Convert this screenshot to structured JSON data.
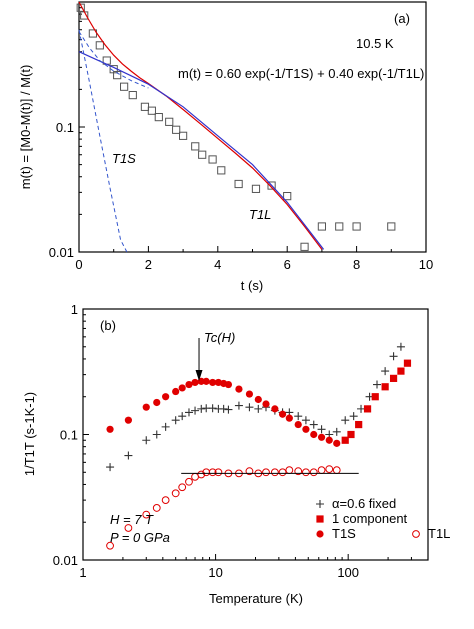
{
  "chart_data": [
    {
      "type": "scatter",
      "panel_label": "(a)",
      "annotations": {
        "temperature": "10.5 K",
        "formula": "m(t) = 0.60 exp(-1/T1S) + 0.40 exp(-1/T1L)",
        "t1s_label": "T1S",
        "t1l_label": "T1L"
      },
      "xlabel": "t (s)",
      "ylabel": "m(t) = [M0-M(t)] / M(t)",
      "xlim": [
        0,
        10
      ],
      "ylim": [
        0.01,
        1
      ],
      "yscale": "log",
      "x_ticks": [
        "0",
        "2",
        "4",
        "6",
        "8",
        "10"
      ],
      "y_ticks": [
        "0.01",
        "0.1"
      ],
      "series": [
        {
          "marker": "open-square",
          "color": "#555555",
          "x": [
            0.05,
            0.15,
            0.4,
            0.6,
            0.8,
            1.0,
            1.1,
            1.3,
            1.55,
            1.9,
            2.1,
            2.3,
            2.6,
            2.8,
            3.0,
            3.35,
            3.55,
            3.85,
            4.1,
            4.6,
            5.1,
            5.55,
            6.0,
            6.5,
            7.0,
            7.5,
            8.0,
            9.0
          ],
          "y": [
            0.9,
            0.78,
            0.56,
            0.45,
            0.34,
            0.29,
            0.26,
            0.21,
            0.18,
            0.145,
            0.135,
            0.12,
            0.11,
            0.095,
            0.085,
            0.07,
            0.06,
            0.055,
            0.045,
            0.035,
            0.032,
            0.034,
            0.028,
            0.011,
            0.016,
            0.016,
            0.016,
            0.016
          ]
        },
        {
          "style": "line",
          "color": "#dd0000",
          "x": [
            0,
            0.25,
            0.5,
            0.75,
            1.0,
            1.25,
            1.5,
            1.75,
            2,
            2.5,
            3,
            3.5,
            4,
            4.5,
            5,
            5.5,
            6,
            6.5,
            7.0
          ],
          "y": [
            1.0,
            0.745,
            0.57,
            0.455,
            0.375,
            0.32,
            0.28,
            0.248,
            0.223,
            0.178,
            0.138,
            0.106,
            0.081,
            0.062,
            0.047,
            0.034,
            0.024,
            0.016,
            0.0105
          ]
        },
        {
          "style": "line",
          "color": "#3333cc",
          "x": [
            0,
            1,
            2,
            3,
            4,
            5,
            6,
            7.05
          ],
          "y": [
            0.4,
            0.3,
            0.22,
            0.145,
            0.085,
            0.05,
            0.025,
            0.0105
          ]
        },
        {
          "style": "dashed",
          "color": "#3355cc",
          "x": [
            0,
            0.3,
            0.6,
            0.9,
            1.2,
            1.38
          ],
          "y": [
            0.6,
            0.23,
            0.085,
            0.032,
            0.0125,
            0.01
          ]
        },
        {
          "style": "dashed",
          "color": "#3355cc",
          "x": [
            0,
            0.3,
            0.6,
            1.0,
            1.5,
            2.0
          ],
          "y": [
            0.58,
            0.43,
            0.34,
            0.28,
            0.235,
            0.205
          ]
        }
      ]
    },
    {
      "type": "scatter",
      "panel_label": "(b)",
      "xlabel": "Temperature (K)",
      "ylabel": "1/T1T (s-1K-1)",
      "xscale": "log",
      "yscale": "log",
      "xlim": [
        1,
        400
      ],
      "ylim": [
        0.01,
        1
      ],
      "x_ticks": [
        "1",
        "10",
        "100"
      ],
      "y_ticks": [
        "0.01",
        "0.1",
        "1"
      ],
      "annotations": {
        "tc_label": "Tc(H)",
        "tc_x": 7.5,
        "field": "H =  7 T",
        "pressure": "P = 0 GPa"
      },
      "legend": {
        "position": "bottom-right",
        "entries": [
          {
            "marker": "plus",
            "color": "#333333",
            "label": "α=0.6 fixed"
          },
          {
            "marker": "filled-square",
            "color": "#e00000",
            "label": "1 component"
          },
          {
            "marker": "filled-circle",
            "color": "#e00000",
            "label": "T1S"
          },
          {
            "marker": "open-circle",
            "color": "#e00000",
            "label": "T1L"
          }
        ]
      },
      "series": [
        {
          "name": "α=0.6 fixed",
          "marker": "plus",
          "color": "#333333",
          "x": [
            1.6,
            2.2,
            3.0,
            3.6,
            4.2,
            5.0,
            5.6,
            6.3,
            7.0,
            7.8,
            8.5,
            9.5,
            10.5,
            11.5,
            12.5,
            15,
            18,
            21,
            24,
            28,
            32,
            36,
            42,
            48,
            55,
            63,
            72,
            82,
            95,
            110,
            125,
            145,
            165,
            190,
            220,
            250
          ],
          "y": [
            0.055,
            0.068,
            0.09,
            0.1,
            0.115,
            0.13,
            0.14,
            0.15,
            0.155,
            0.16,
            0.162,
            0.162,
            0.16,
            0.16,
            0.158,
            0.17,
            0.165,
            0.16,
            0.165,
            0.155,
            0.15,
            0.15,
            0.14,
            0.13,
            0.12,
            0.11,
            0.1,
            0.105,
            0.13,
            0.14,
            0.16,
            0.2,
            0.25,
            0.32,
            0.42,
            0.5
          ]
        },
        {
          "name": "1 component",
          "marker": "filled-square",
          "color": "#e00000",
          "x": [
            95,
            105,
            120,
            140,
            160,
            190,
            220,
            250,
            280
          ],
          "y": [
            0.09,
            0.1,
            0.12,
            0.16,
            0.2,
            0.24,
            0.28,
            0.32,
            0.37
          ]
        },
        {
          "name": "T1S",
          "marker": "filled-circle",
          "color": "#e00000",
          "x": [
            1.6,
            2.2,
            3.0,
            3.6,
            4.2,
            5.0,
            5.6,
            6.3,
            7.0,
            7.8,
            8.5,
            9.5,
            10.5,
            11.5,
            12.5,
            15,
            18,
            21,
            24,
            28,
            32,
            36,
            42,
            48,
            55,
            63,
            72,
            82
          ],
          "y": [
            0.11,
            0.13,
            0.165,
            0.18,
            0.2,
            0.22,
            0.235,
            0.25,
            0.26,
            0.265,
            0.265,
            0.26,
            0.26,
            0.255,
            0.25,
            0.23,
            0.21,
            0.19,
            0.175,
            0.16,
            0.145,
            0.135,
            0.12,
            0.11,
            0.1,
            0.095,
            0.09,
            0.085
          ]
        },
        {
          "name": "T1L",
          "marker": "open-circle",
          "color": "#e00000",
          "x": [
            1.6,
            2.2,
            3.0,
            3.6,
            4.2,
            5.0,
            5.6,
            6.3,
            7.0,
            7.8,
            8.5,
            9.5,
            10.5,
            12.5,
            15,
            18,
            21,
            24,
            28,
            32,
            36,
            42,
            48,
            55,
            63,
            72,
            82
          ],
          "y": [
            0.013,
            0.018,
            0.023,
            0.026,
            0.03,
            0.034,
            0.038,
            0.042,
            0.046,
            0.048,
            0.05,
            0.05,
            0.05,
            0.049,
            0.049,
            0.051,
            0.049,
            0.05,
            0.05,
            0.05,
            0.052,
            0.051,
            0.05,
            0.05,
            0.052,
            0.053,
            0.052
          ]
        },
        {
          "style": "line",
          "color": "#000000",
          "x": [
            5.5,
            120
          ],
          "y": [
            0.049,
            0.049
          ]
        }
      ]
    }
  ]
}
